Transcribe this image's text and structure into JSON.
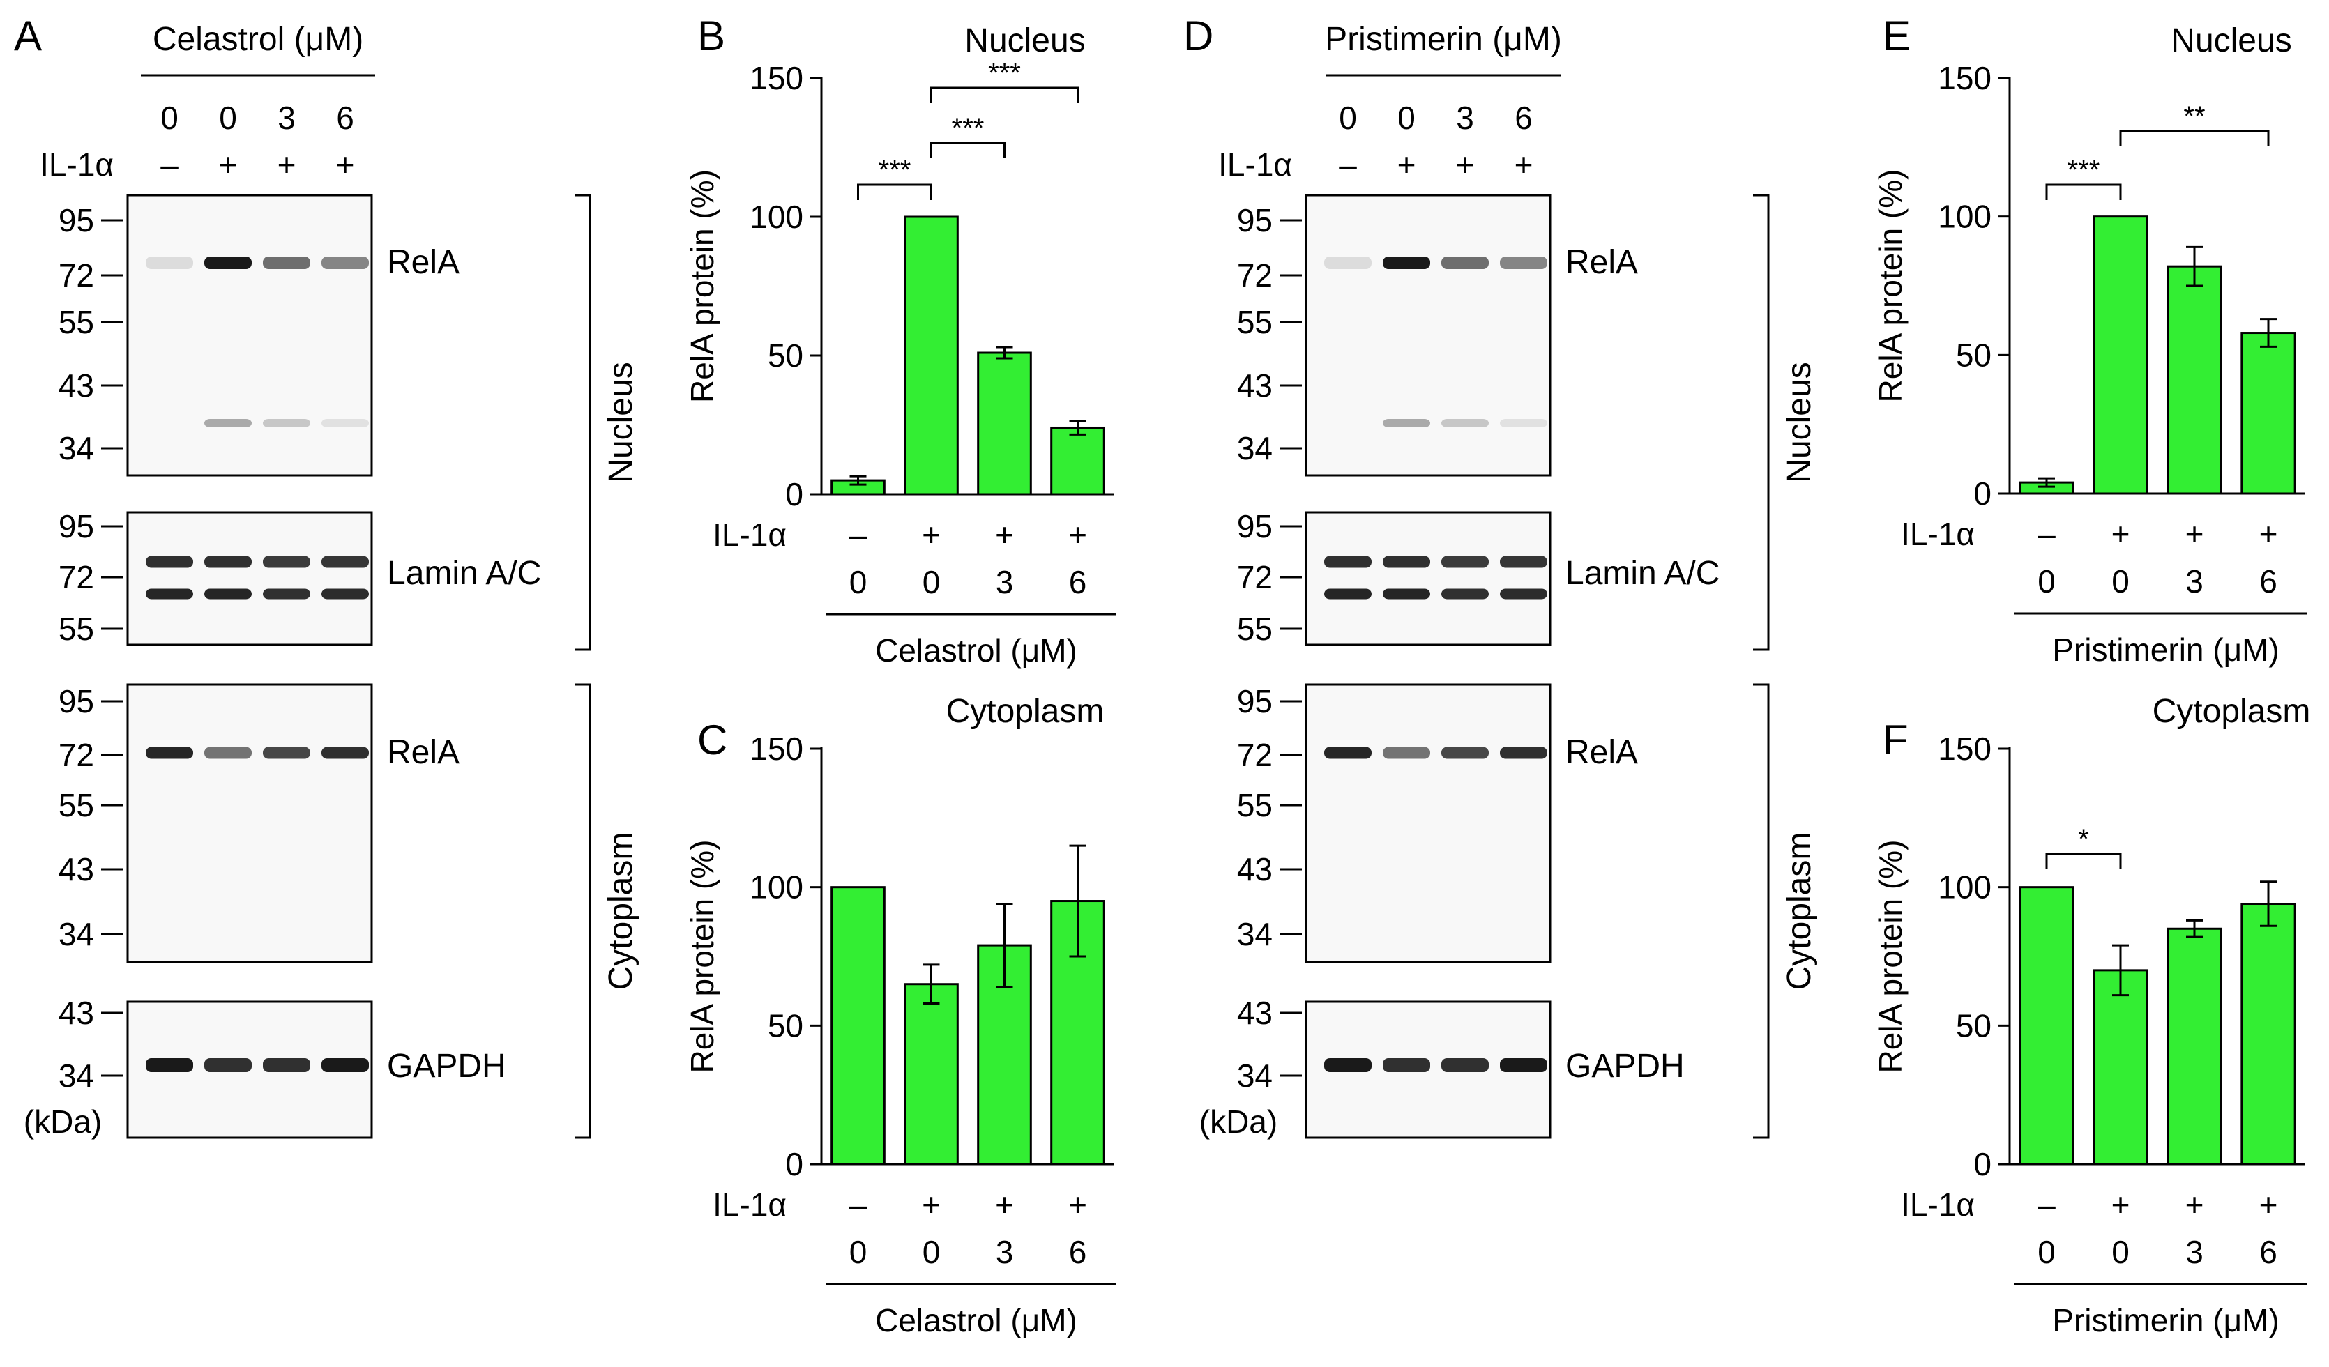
{
  "colors": {
    "bar": "#33ee33",
    "ink": "#000000",
    "blot_bg": "#f8f8f8",
    "band": "#1a1a1a"
  },
  "blots": [
    {
      "panel": "A",
      "compound": "Celastrol (μM)",
      "doses": [
        "0",
        "0",
        "3",
        "6"
      ],
      "il1_label": "IL-1α",
      "il1": [
        "–",
        "+",
        "+",
        "+"
      ],
      "kda_label": "(kDa)",
      "blocks": [
        {
          "protein": "RelA",
          "markers": [
            "95",
            "72",
            "55",
            "43",
            "34"
          ]
        },
        {
          "protein": "Lamin A/C",
          "markers": [
            "95",
            "72",
            "55"
          ]
        },
        {
          "protein": "RelA",
          "markers": [
            "95",
            "72",
            "55",
            "43",
            "34"
          ]
        },
        {
          "protein": "GAPDH",
          "markers": [
            "43",
            "34"
          ]
        }
      ],
      "fractions": [
        "Nucleus",
        "Cytoplasm"
      ]
    },
    {
      "panel": "D",
      "compound": "Pristimerin (μM)",
      "doses": [
        "0",
        "0",
        "3",
        "6"
      ],
      "il1_label": "IL-1α",
      "il1": [
        "–",
        "+",
        "+",
        "+"
      ],
      "kda_label": "(kDa)",
      "blocks": [
        {
          "protein": "RelA",
          "markers": [
            "95",
            "72",
            "55",
            "43",
            "34"
          ]
        },
        {
          "protein": "Lamin A/C",
          "markers": [
            "95",
            "72",
            "55"
          ]
        },
        {
          "protein": "RelA",
          "markers": [
            "95",
            "72",
            "55",
            "43",
            "34"
          ]
        },
        {
          "protein": "GAPDH",
          "markers": [
            "43",
            "34"
          ]
        }
      ],
      "fractions": [
        "Nucleus",
        "Cytoplasm"
      ]
    }
  ],
  "chart_data": [
    {
      "panel": "B",
      "type": "bar",
      "title": "Nucleus",
      "ylabel": "RelA protein (%)",
      "ylim": [
        0,
        150
      ],
      "yticks": [
        0,
        50,
        100,
        150
      ],
      "categories": [
        "0",
        "0",
        "3",
        "6"
      ],
      "il1": [
        "–",
        "+",
        "+",
        "+"
      ],
      "il1_label": "IL-1α",
      "xlabel": "Celastrol (μM)",
      "values": [
        5,
        100,
        51,
        24
      ],
      "errors": [
        1.5,
        0,
        2,
        2.5
      ],
      "significance": [
        {
          "from": 0,
          "to": 1,
          "label": "***"
        },
        {
          "from": 1,
          "to": 2,
          "label": "***"
        },
        {
          "from": 1,
          "to": 3,
          "label": "***"
        }
      ]
    },
    {
      "panel": "C",
      "type": "bar",
      "title": "Cytoplasm",
      "ylabel": "RelA protein (%)",
      "ylim": [
        0,
        150
      ],
      "yticks": [
        0,
        50,
        100,
        150
      ],
      "categories": [
        "0",
        "0",
        "3",
        "6"
      ],
      "il1": [
        "–",
        "+",
        "+",
        "+"
      ],
      "il1_label": "IL-1α",
      "xlabel": "Celastrol (μM)",
      "values": [
        100,
        65,
        79,
        95
      ],
      "errors": [
        0,
        7,
        15,
        20
      ],
      "significance": []
    },
    {
      "panel": "E",
      "type": "bar",
      "title": "Nucleus",
      "ylabel": "RelA protein (%)",
      "ylim": [
        0,
        150
      ],
      "yticks": [
        0,
        50,
        100,
        150
      ],
      "categories": [
        "0",
        "0",
        "3",
        "6"
      ],
      "il1": [
        "–",
        "+",
        "+",
        "+"
      ],
      "il1_label": "IL-1α",
      "xlabel": "Pristimerin (μM)",
      "values": [
        4,
        100,
        82,
        58
      ],
      "errors": [
        1.5,
        0,
        7,
        5
      ],
      "significance": [
        {
          "from": 0,
          "to": 1,
          "label": "***"
        },
        {
          "from": 1,
          "to": 3,
          "label": "**"
        }
      ]
    },
    {
      "panel": "F",
      "type": "bar",
      "title": "Cytoplasm",
      "ylabel": "RelA protein (%)",
      "ylim": [
        0,
        150
      ],
      "yticks": [
        0,
        50,
        100,
        150
      ],
      "categories": [
        "0",
        "0",
        "3",
        "6"
      ],
      "il1": [
        "–",
        "+",
        "+",
        "+"
      ],
      "il1_label": "IL-1α",
      "xlabel": "Pristimerin (μM)",
      "values": [
        100,
        70,
        85,
        94
      ],
      "errors": [
        0,
        9,
        3,
        8
      ],
      "significance": [
        {
          "from": 0,
          "to": 1,
          "label": "*"
        }
      ]
    }
  ]
}
